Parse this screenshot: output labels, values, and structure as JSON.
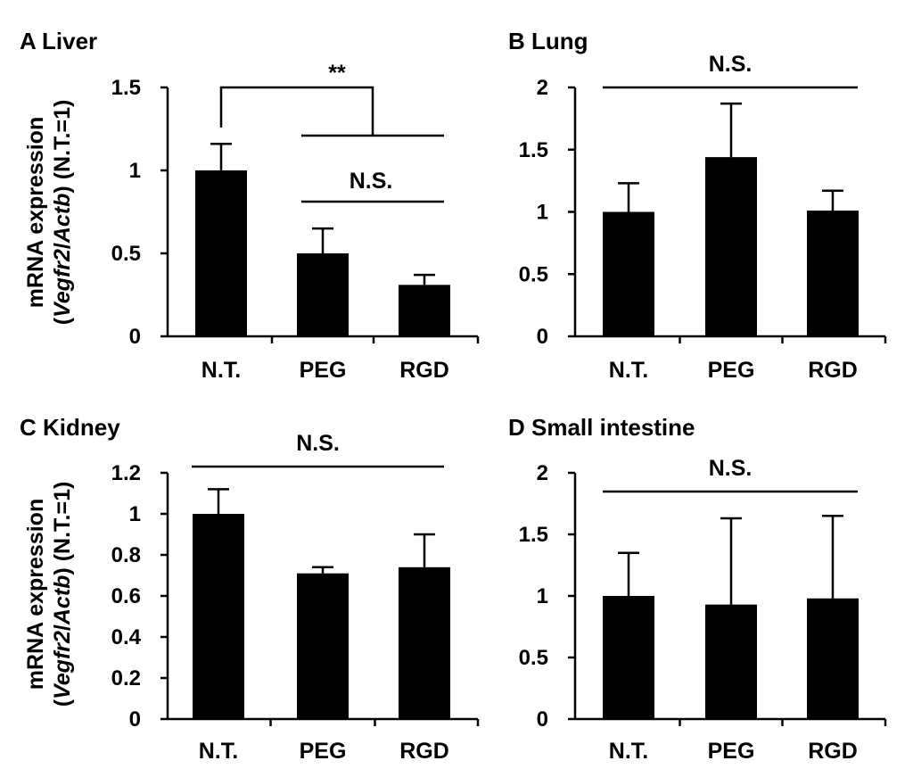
{
  "ylabel_line1": "mRNA expression",
  "ylabel_line2_italic_a": "Vegfr2",
  "ylabel_line2_sep": "/",
  "ylabel_line2_italic_b": "Actb",
  "ylabel_line2_suffix": ") (N.T.=1)",
  "ylabel_line2_prefix": "(",
  "chart_data": [
    {
      "type": "bar",
      "title": "A Liver",
      "categories": [
        "N.T.",
        "PEG",
        "RGD"
      ],
      "values": [
        1.0,
        0.5,
        0.31
      ],
      "errors": [
        0.16,
        0.15,
        0.06
      ],
      "ylim": [
        0,
        1.5
      ],
      "yticks": [
        0,
        0.5,
        1,
        1.5
      ],
      "ytick_labels": [
        "0",
        "0.5",
        "1",
        "1.5"
      ],
      "ylabel": "mRNA expression (Vegfr2/Actb) (N.T.=1)",
      "annotations": [
        {
          "label": "**",
          "type": "bracket-vs-group",
          "from": "N.T.",
          "to": [
            "PEG",
            "RGD"
          ]
        },
        {
          "label": "N.S.",
          "type": "line",
          "from": "PEG",
          "to": "RGD"
        }
      ]
    },
    {
      "type": "bar",
      "title": "B Lung",
      "categories": [
        "N.T.",
        "PEG",
        "RGD"
      ],
      "values": [
        1.0,
        1.44,
        1.01
      ],
      "errors": [
        0.23,
        0.43,
        0.16
      ],
      "ylim": [
        0,
        2
      ],
      "yticks": [
        0,
        0.5,
        1,
        1.5,
        2
      ],
      "ytick_labels": [
        "0",
        "0.5",
        "1",
        "1.5",
        "2"
      ],
      "annotations": [
        {
          "label": "N.S.",
          "type": "line",
          "from": "N.T.",
          "to": "RGD"
        }
      ]
    },
    {
      "type": "bar",
      "title": "C Kidney",
      "categories": [
        "N.T.",
        "PEG",
        "RGD"
      ],
      "values": [
        1.0,
        0.71,
        0.74
      ],
      "errors": [
        0.12,
        0.03,
        0.16
      ],
      "ylim": [
        0,
        1.2
      ],
      "yticks": [
        0,
        0.2,
        0.4,
        0.6,
        0.8,
        1,
        1.2
      ],
      "ytick_labels": [
        "0",
        "0.2",
        "0.4",
        "0.6",
        "0.8",
        "1",
        "1.2"
      ],
      "ylabel": "mRNA expression (Vegfr2/Actb) (N.T.=1)",
      "annotations": [
        {
          "label": "N.S.",
          "type": "line",
          "from": "N.T.",
          "to": "RGD"
        }
      ]
    },
    {
      "type": "bar",
      "title": "D Small intestine",
      "categories": [
        "N.T.",
        "PEG",
        "RGD"
      ],
      "values": [
        1.0,
        0.93,
        0.98
      ],
      "errors": [
        0.35,
        0.7,
        0.67
      ],
      "ylim": [
        0,
        2
      ],
      "yticks": [
        0,
        0.5,
        1,
        1.5,
        2
      ],
      "ytick_labels": [
        "0",
        "0.5",
        "1",
        "1.5",
        "2"
      ],
      "annotations": [
        {
          "label": "N.S.",
          "type": "line",
          "from": "N.T.",
          "to": "RGD"
        }
      ]
    }
  ]
}
